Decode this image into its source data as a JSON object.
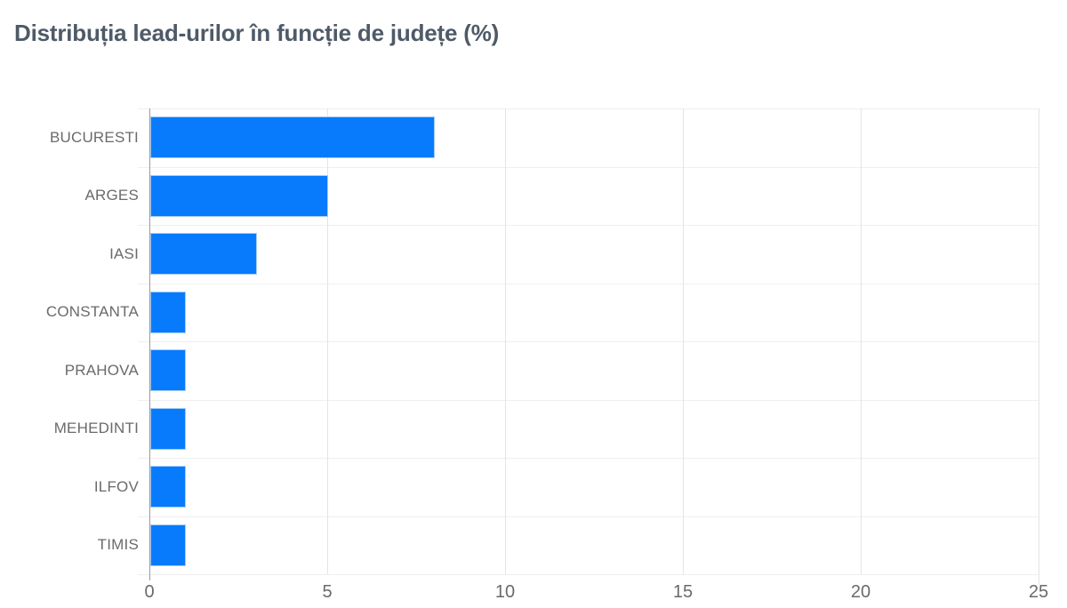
{
  "page": {
    "background": "#ffffff"
  },
  "colors": {
    "background": "#ffffff",
    "title_text": "#4f5a68",
    "axis_label_text": "#6a6a6a",
    "bar_fill": "#077bfc",
    "bar_stroke": "#a6cbf9",
    "gridline": "#e4e4e4",
    "band_line": "#efefef",
    "baseline": "#9b9b9b"
  },
  "chart_data": {
    "type": "bar",
    "orientation": "horizontal",
    "title": "Distribuția lead-urilor în funcție de județe (%)",
    "categories": [
      "BUCURESTI",
      "ARGES",
      "IASI",
      "CONSTANTA",
      "PRAHOVA",
      "MEHEDINTI",
      "ILFOV",
      "TIMIS"
    ],
    "values": [
      8,
      5,
      3,
      1,
      1,
      1,
      1,
      1
    ],
    "xlabel": "",
    "ylabel": "",
    "xlim": [
      0,
      25
    ],
    "xticks": [
      0,
      5,
      10,
      15,
      20,
      25
    ],
    "grid": true,
    "legend": false,
    "bar_color": "#077bfc"
  }
}
